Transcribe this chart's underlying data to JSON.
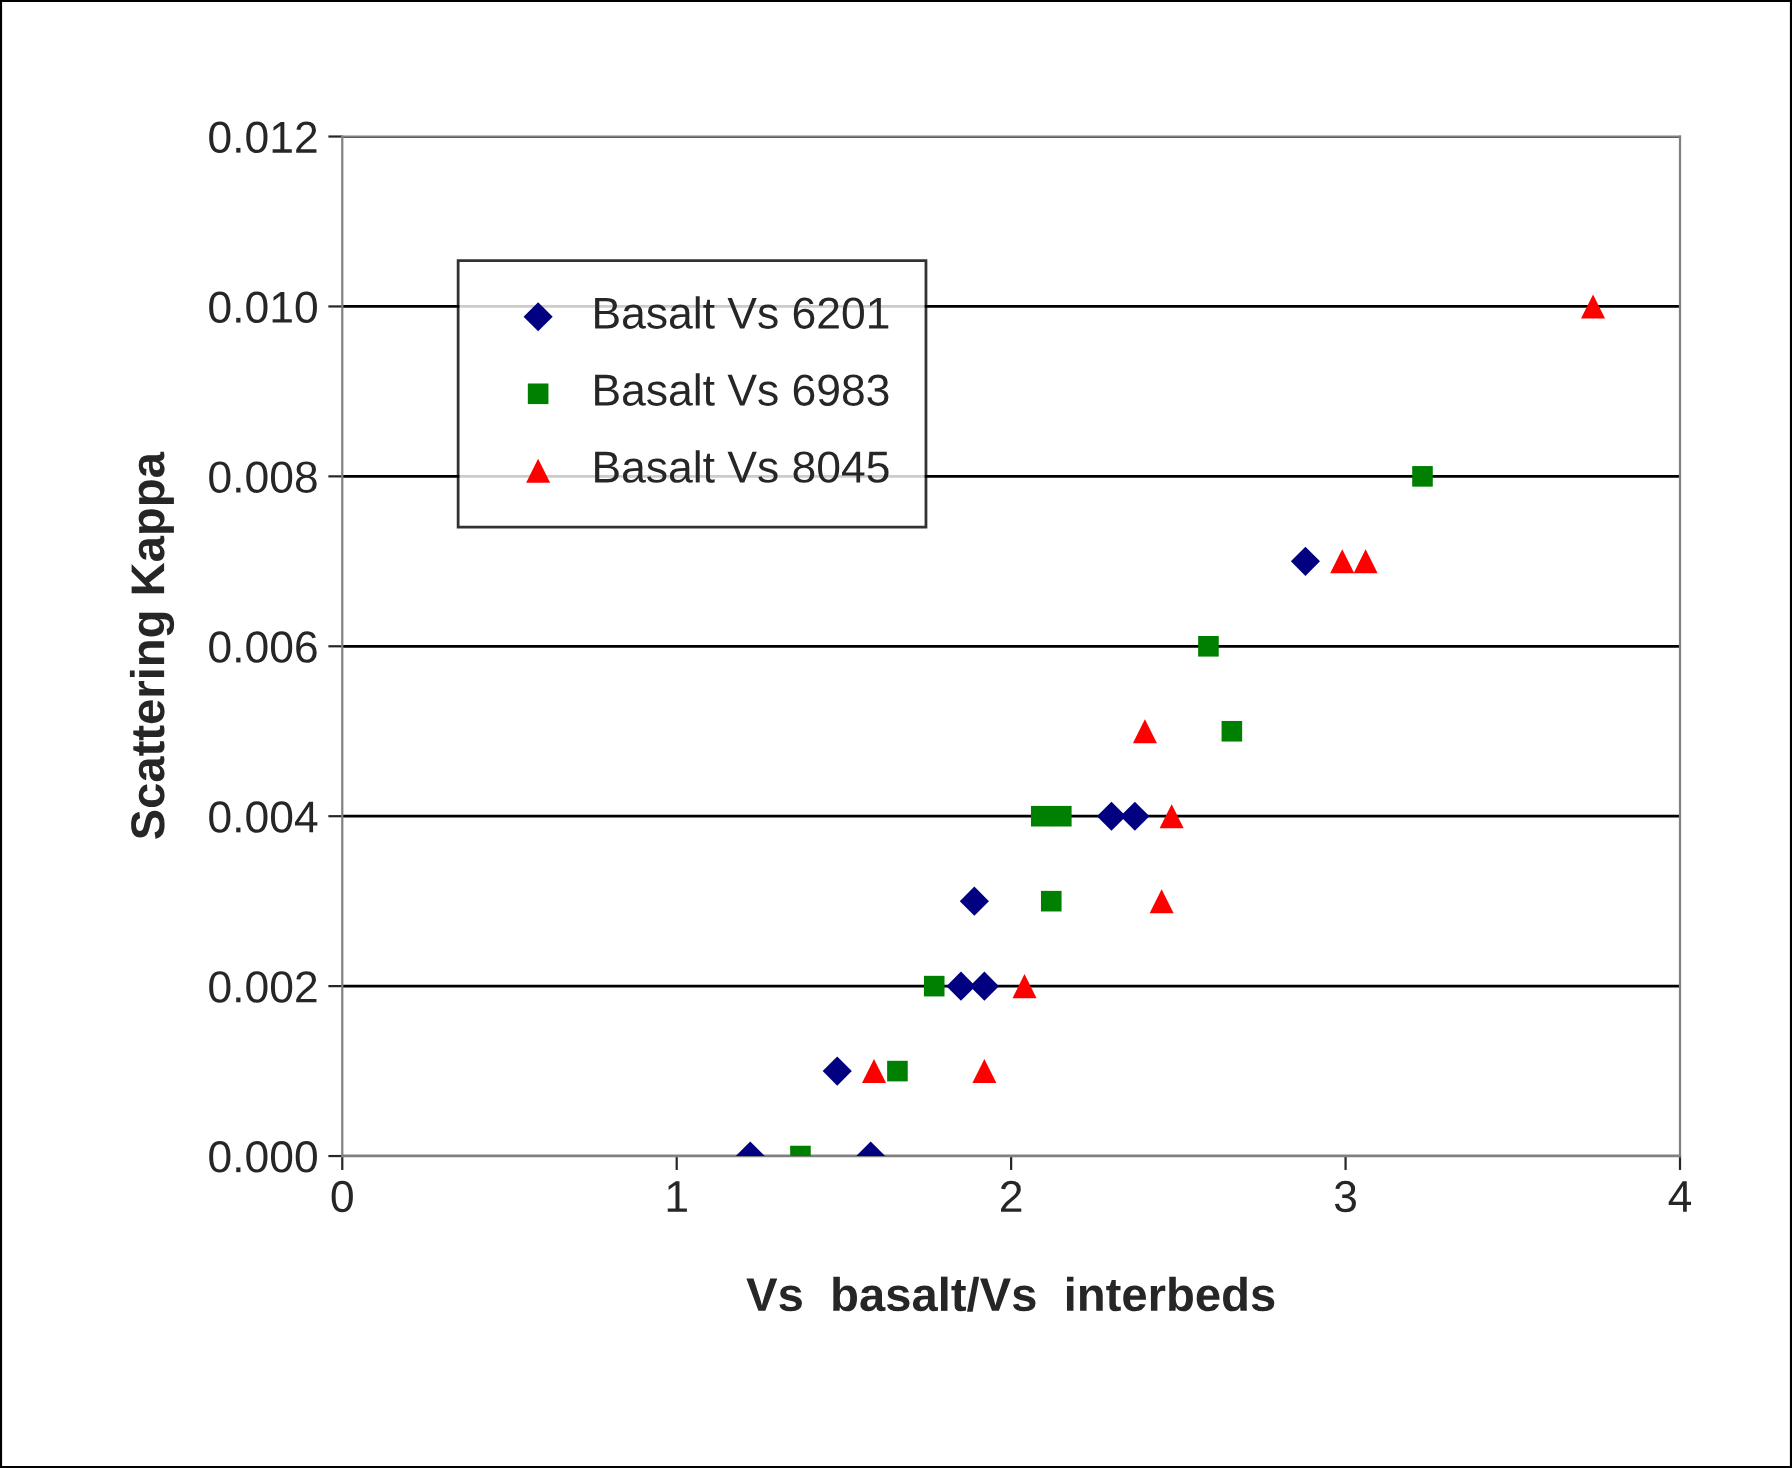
{
  "chart_data": {
    "type": "scatter",
    "xlabel": "Vs  basalt/Vs  interbeds",
    "ylabel": "Scattering Kappa",
    "xlim": [
      0,
      4
    ],
    "xticks": [
      0,
      1,
      2,
      3,
      4
    ],
    "ylim": [
      0,
      0.012
    ],
    "yticks": [
      {
        "value": 0,
        "label": "0.000"
      },
      {
        "value": 0.002,
        "label": "0.002"
      },
      {
        "value": 0.004,
        "label": "0.004"
      },
      {
        "value": 0.006,
        "label": "0.006"
      },
      {
        "value": 0.008,
        "label": "0.008"
      },
      {
        "value": 0.01,
        "label": "0.010"
      },
      {
        "value": 0.012,
        "label": "0.012"
      }
    ],
    "grid": "y",
    "legend": "top left",
    "series": [
      {
        "name": "Basalt Vs 6201",
        "color": "#000080",
        "marker": "diamond",
        "x": [
          1.22,
          1.58,
          1.48,
          1.85,
          1.92,
          1.89,
          2.3,
          2.37,
          2.88
        ],
        "values": [
          0,
          0,
          0.001,
          0.002,
          0.002,
          0.003,
          0.004,
          0.004,
          0.007
        ]
      },
      {
        "name": "Basalt Vs 6983",
        "color": "#008000",
        "marker": "square",
        "x": [
          1.37,
          1.66,
          1.77,
          2.09,
          2.15,
          2.12,
          2.59,
          2.66,
          3.23
        ],
        "values": [
          0,
          0.001,
          0.002,
          0.004,
          0.004,
          0.003,
          0.006,
          0.005,
          0.008
        ]
      },
      {
        "name": "Basalt Vs 8045",
        "color": "#ff0000",
        "marker": "triangle",
        "x": [
          1.59,
          1.92,
          2.04,
          2.4,
          2.48,
          2.45,
          2.99,
          3.06,
          3.74
        ],
        "values": [
          0.001,
          0.001,
          0.002,
          0.005,
          0.004,
          0.003,
          0.007,
          0.007,
          0.01
        ]
      }
    ]
  }
}
